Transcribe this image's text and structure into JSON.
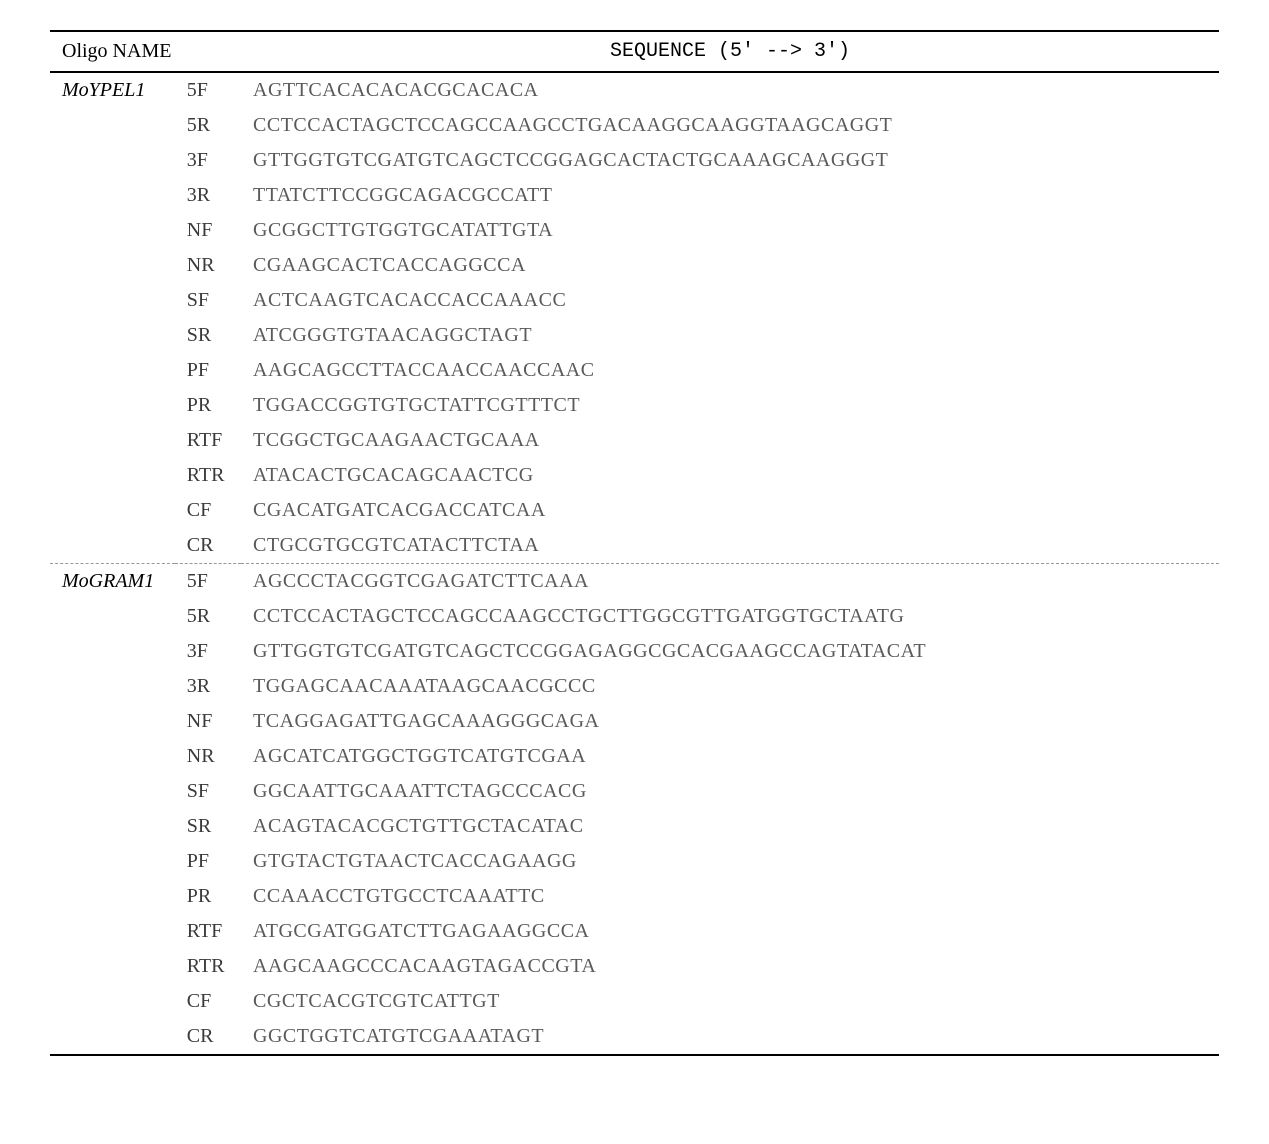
{
  "header": {
    "col1": "Oligo NAME",
    "col3": "SEQUENCE (5' --> 3')"
  },
  "groups": [
    {
      "gene": "MoYPEL1",
      "rows": [
        {
          "code": "5F",
          "seq": "AGTTCACACACACGCACACA"
        },
        {
          "code": "5R",
          "seq": "CCTCCACTAGCTCCAGCCAAGCCTGACAAGGCAAGGTAAGCAGGT"
        },
        {
          "code": "3F",
          "seq": "GTTGGTGTCGATGTCAGCTCCGGAGCACTACTGCAAAGCAAGGGT"
        },
        {
          "code": "3R",
          "seq": "TTATCTTCCGGCAGACGCCATT"
        },
        {
          "code": "NF",
          "seq": "GCGGCTTGTGGTGCATATTGTA"
        },
        {
          "code": "NR",
          "seq": "CGAAGCACTCACCAGGCCA"
        },
        {
          "code": "SF",
          "seq": "ACTCAAGTCACACCACCAAACC"
        },
        {
          "code": "SR",
          "seq": "ATCGGGTGTAACAGGCTAGT"
        },
        {
          "code": "PF",
          "seq": "AAGCAGCCTTACCAACCAACCAAC"
        },
        {
          "code": "PR",
          "seq": "TGGACCGGTGTGCTATTCGTTTCT"
        },
        {
          "code": "RTF",
          "seq": "TCGGCTGCAAGAACTGCAAA"
        },
        {
          "code": "RTR",
          "seq": "ATACACTGCACAGCAACTCG"
        },
        {
          "code": "CF",
          "seq": "CGACATGATCACGACCATCAA"
        },
        {
          "code": "CR",
          "seq": "CTGCGTGCGTCATACTTCTAA"
        }
      ]
    },
    {
      "gene": "MoGRAM1",
      "rows": [
        {
          "code": "5F",
          "seq": "AGCCCTACGGTCGAGATCTTCAAA"
        },
        {
          "code": "5R",
          "seq": "CCTCCACTAGCTCCAGCCAAGCCTGCTTGGCGTTGATGGTGCTAATG"
        },
        {
          "code": "3F",
          "seq": "GTTGGTGTCGATGTCAGCTCCGGAGAGGCGCACGAAGCCAGTATACAT"
        },
        {
          "code": "3R",
          "seq": "TGGAGCAACAAATAAGCAACGCCC"
        },
        {
          "code": "NF",
          "seq": "TCAGGAGATTGAGCAAAGGGCAGA"
        },
        {
          "code": "NR",
          "seq": "AGCATCATGGCTGGTCATGTCGAA"
        },
        {
          "code": "SF",
          "seq": "GGCAATTGCAAATTCTAGCCCACG"
        },
        {
          "code": "SR",
          "seq": "ACAGTACACGCTGTTGCTACATAC"
        },
        {
          "code": "PF",
          "seq": "GTGTACTGTAACTCACCAGAAGG"
        },
        {
          "code": "PR",
          "seq": "CCAAACCTGTGCCTCAAATTC"
        },
        {
          "code": "RTF",
          "seq": "ATGCGATGGATCTTGAGAAGGCCA"
        },
        {
          "code": "RTR",
          "seq": "AAGCAAGCCCACAAGTAGACCGTA"
        },
        {
          "code": "CF",
          "seq": "CGCTCACGTCGTCATTGT"
        },
        {
          "code": "CR",
          "seq": "GGCTGGTCATGTCGAAATAGT"
        }
      ]
    }
  ]
}
